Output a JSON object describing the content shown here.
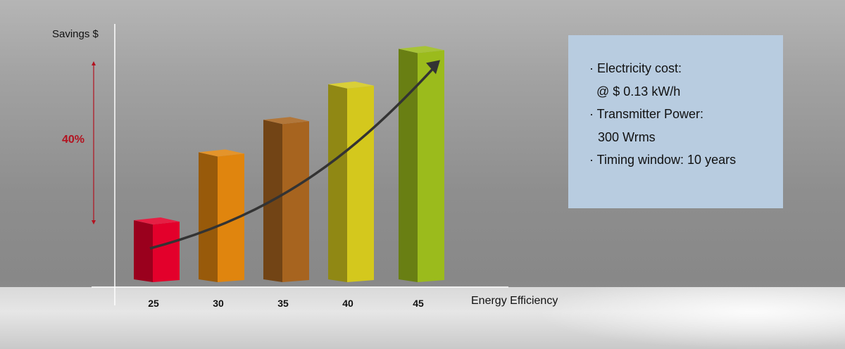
{
  "chart_data": {
    "type": "bar",
    "title": "",
    "xlabel": "Energy Efficiency",
    "ylabel": "Savings $",
    "categories": [
      "25",
      "30",
      "35",
      "40",
      "45"
    ],
    "values": [
      20,
      43,
      54,
      66,
      78
    ],
    "ylim": [
      0,
      85
    ],
    "bar_colors": [
      "#e3002b",
      "#e0850e",
      "#a7641f",
      "#d4c81d",
      "#9bbb1c"
    ],
    "grid": false,
    "legend": "none",
    "annotation": {
      "span_label": "40%",
      "span_color": "#b3121f",
      "trend_arrow": "increasing"
    }
  },
  "info": {
    "items": [
      {
        "line1": "· Electricity cost:",
        "line2": "@ $ 0.13 kW/h"
      },
      {
        "line1": "· Transmitter Power:",
        "line2": "300 Wrms"
      },
      {
        "line1": "· Timing window: 10 years",
        "line2": ""
      }
    ]
  }
}
